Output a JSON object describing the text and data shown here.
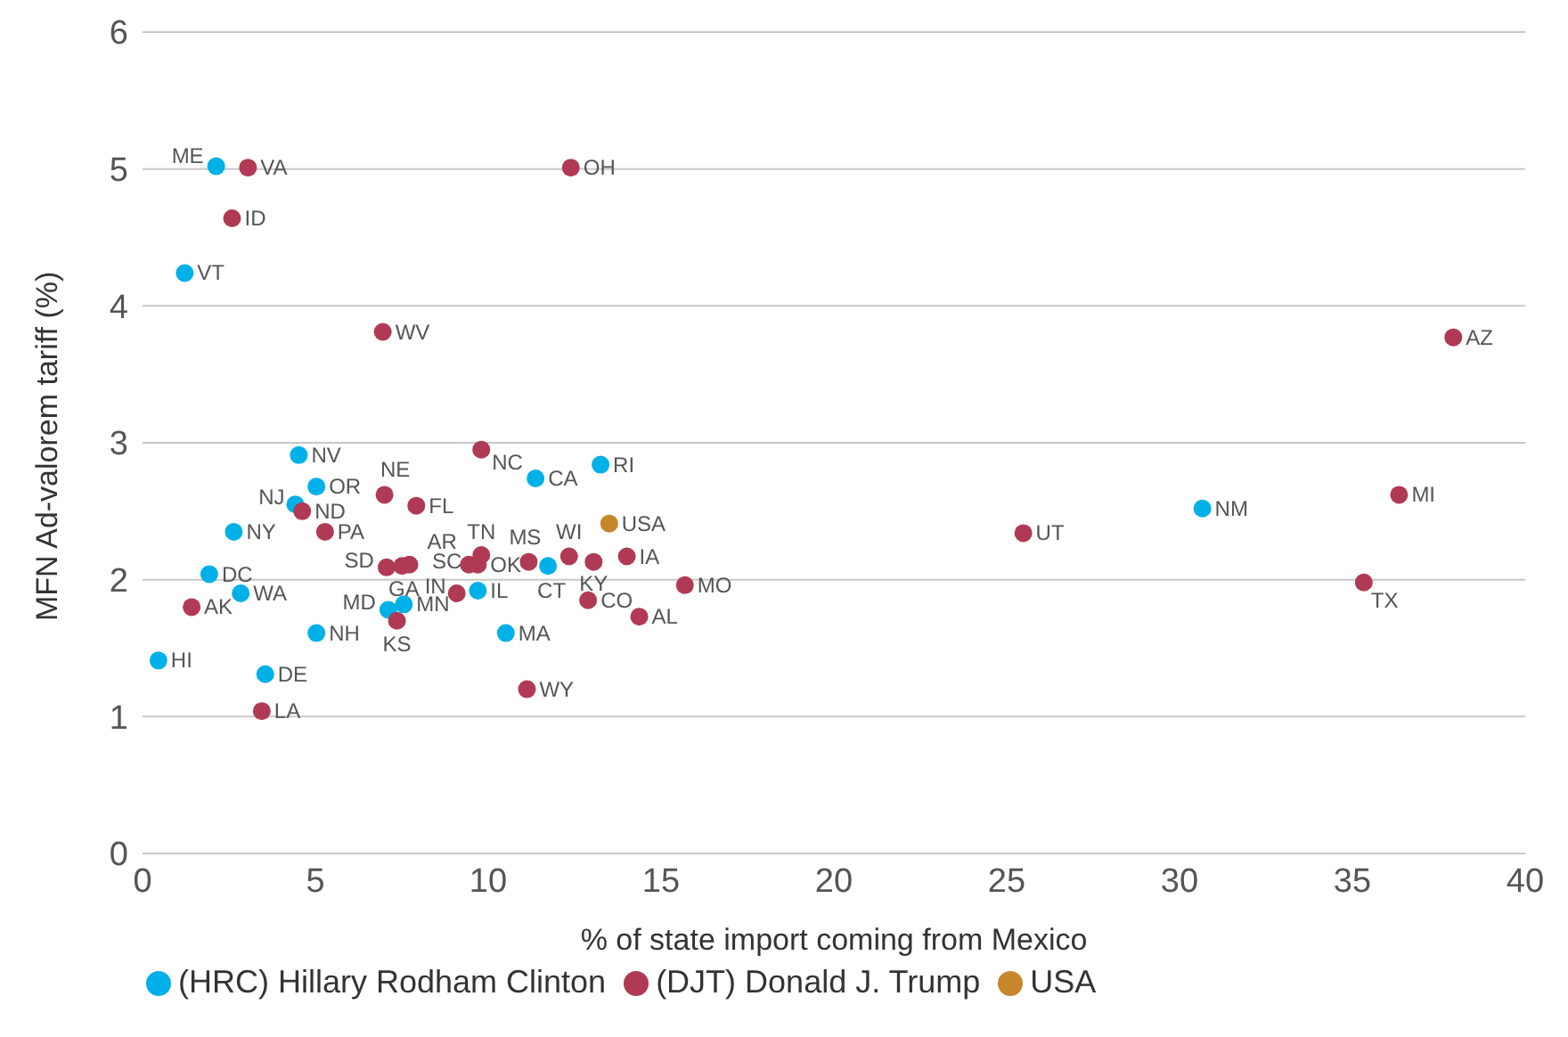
{
  "chart_data": {
    "type": "scatter",
    "xlabel": "% of state import coming from Mexico",
    "ylabel": "MFN Ad-valorem tariff (%)",
    "xlim": [
      0,
      40
    ],
    "xticks": [
      0,
      5,
      10,
      15,
      20,
      25,
      30,
      35,
      40
    ],
    "ylim": [
      0,
      6
    ],
    "yticks": [
      0,
      1,
      2,
      3,
      4,
      5,
      6
    ],
    "grid": "y",
    "legend": "bottom",
    "marker": "circle",
    "series": [
      {
        "name": "(HRC) Hillary Rodham Clinton",
        "color": "#00b0e8",
        "x": [
          2.13,
          1.22,
          4.52,
          5.03,
          4.42,
          2.64,
          1.93,
          2.84,
          5.03,
          0.46,
          3.55,
          7.11,
          7.56,
          9.7,
          10.51,
          11.37,
          13.25,
          11.73,
          30.66
        ],
        "values": [
          5.02,
          4.24,
          2.91,
          2.68,
          2.55,
          2.35,
          2.04,
          1.9,
          1.61,
          1.41,
          1.31,
          1.78,
          1.82,
          1.92,
          1.61,
          2.74,
          2.84,
          2.1,
          2.52
        ]
      },
      {
        "name": "(DJT) Donald J. Trump",
        "color": "#b03a55",
        "x": [
          3.05,
          12.39,
          2.59,
          6.95,
          37.92,
          9.8,
          7.0,
          7.92,
          4.62,
          5.28,
          36.35,
          25.48,
          7.06,
          7.72,
          7.51,
          9.44,
          9.7,
          9.8,
          7.36,
          9.09,
          11.17,
          12.34,
          13.05,
          12.89,
          14.01,
          14.37,
          15.69,
          11.12,
          3.45,
          1.42,
          35.33
        ],
        "values": [
          5.01,
          5.01,
          4.64,
          3.81,
          3.77,
          2.95,
          2.62,
          2.54,
          2.5,
          2.35,
          2.62,
          2.34,
          2.09,
          2.11,
          2.1,
          2.11,
          2.11,
          2.18,
          1.7,
          1.9,
          2.13,
          2.17,
          2.13,
          1.85,
          2.17,
          1.73,
          1.96,
          1.2,
          1.04,
          1.8,
          1.98
        ]
      },
      {
        "name": "USA",
        "color": "#c8862a",
        "x": [
          13.5
        ],
        "values": [
          2.41
        ]
      }
    ],
    "annotations": [
      {
        "text": "ME",
        "x": 2.13,
        "y": 5.02
      },
      {
        "text": "VT",
        "x": 1.22,
        "y": 4.24
      },
      {
        "text": "NV",
        "x": 4.52,
        "y": 2.91
      },
      {
        "text": "OR",
        "x": 5.03,
        "y": 2.68
      },
      {
        "text": "NJ",
        "x": 4.42,
        "y": 2.55
      },
      {
        "text": "NY",
        "x": 2.64,
        "y": 2.35
      },
      {
        "text": "DC",
        "x": 1.93,
        "y": 2.04
      },
      {
        "text": "WA",
        "x": 2.84,
        "y": 1.9
      },
      {
        "text": "NH",
        "x": 5.03,
        "y": 1.61
      },
      {
        "text": "HI",
        "x": 0.46,
        "y": 1.41
      },
      {
        "text": "DE",
        "x": 3.55,
        "y": 1.31
      },
      {
        "text": "MD",
        "x": 7.11,
        "y": 1.78
      },
      {
        "text": "MN",
        "x": 7.56,
        "y": 1.82
      },
      {
        "text": "IL",
        "x": 9.7,
        "y": 1.92
      },
      {
        "text": "MA",
        "x": 10.51,
        "y": 1.61
      },
      {
        "text": "CA",
        "x": 11.37,
        "y": 2.74
      },
      {
        "text": "RI",
        "x": 13.25,
        "y": 2.84
      },
      {
        "text": "CT",
        "x": 11.73,
        "y": 2.1
      },
      {
        "text": "NM",
        "x": 30.66,
        "y": 2.52
      },
      {
        "text": "VA",
        "x": 3.05,
        "y": 5.01
      },
      {
        "text": "OH",
        "x": 12.39,
        "y": 5.01
      },
      {
        "text": "ID",
        "x": 2.59,
        "y": 4.64
      },
      {
        "text": "WV",
        "x": 6.95,
        "y": 3.81
      },
      {
        "text": "AZ",
        "x": 37.92,
        "y": 3.77
      },
      {
        "text": "NC",
        "x": 9.8,
        "y": 2.95
      },
      {
        "text": "NE",
        "x": 7.0,
        "y": 2.62
      },
      {
        "text": "FL",
        "x": 7.92,
        "y": 2.54
      },
      {
        "text": "ND",
        "x": 4.62,
        "y": 2.5
      },
      {
        "text": "PA",
        "x": 5.28,
        "y": 2.35
      },
      {
        "text": "MI",
        "x": 36.35,
        "y": 2.62
      },
      {
        "text": "UT",
        "x": 25.48,
        "y": 2.34
      },
      {
        "text": "SD",
        "x": 7.06,
        "y": 2.09
      },
      {
        "text": "AR",
        "x": 7.72,
        "y": 2.11
      },
      {
        "text": "GA",
        "x": 7.51,
        "y": 2.1
      },
      {
        "text": "SC",
        "x": 9.44,
        "y": 2.11
      },
      {
        "text": "OK",
        "x": 9.7,
        "y": 2.11
      },
      {
        "text": "TN",
        "x": 9.8,
        "y": 2.18
      },
      {
        "text": "KS",
        "x": 7.36,
        "y": 1.7
      },
      {
        "text": "IN",
        "x": 9.09,
        "y": 1.9
      },
      {
        "text": "MS",
        "x": 11.17,
        "y": 2.13
      },
      {
        "text": "WI",
        "x": 12.34,
        "y": 2.17
      },
      {
        "text": "KY",
        "x": 13.05,
        "y": 2.13
      },
      {
        "text": "CO",
        "x": 12.89,
        "y": 1.85
      },
      {
        "text": "IA",
        "x": 14.01,
        "y": 2.17
      },
      {
        "text": "AL",
        "x": 14.37,
        "y": 1.73
      },
      {
        "text": "MO",
        "x": 15.69,
        "y": 1.96
      },
      {
        "text": "WY",
        "x": 11.12,
        "y": 1.2
      },
      {
        "text": "LA",
        "x": 3.45,
        "y": 1.04
      },
      {
        "text": "AK",
        "x": 1.42,
        "y": 1.8
      },
      {
        "text": "TX",
        "x": 35.33,
        "y": 1.98
      },
      {
        "text": "USA",
        "x": 13.5,
        "y": 2.41
      }
    ]
  }
}
